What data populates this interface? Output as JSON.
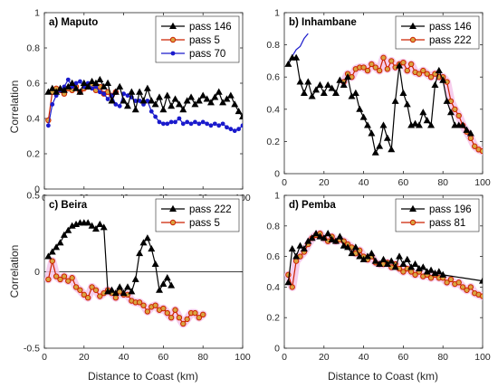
{
  "figure": {
    "xlabel": "Distance to Coast (km)",
    "ylabel": "Correlation"
  },
  "colors": {
    "black": "#000000",
    "red": "#cc2200",
    "marker_face": "#d9a441",
    "blue": "#1a1acc",
    "highlight": "#f4c6ea"
  },
  "chart_data": [
    {
      "type": "line",
      "title": "a) Maputo",
      "xlim": [
        0,
        100
      ],
      "ylim": [
        0,
        1
      ],
      "xticks": [
        0,
        20,
        40,
        60,
        80,
        100
      ],
      "yticks": [
        0,
        0.2,
        0.4,
        0.6,
        0.8,
        1
      ],
      "ytick_labels": [
        "0",
        "0.2",
        "0.4",
        "0.6",
        "0.8",
        "1"
      ],
      "legend_position": "top-right",
      "series": [
        {
          "name": "pass 146",
          "style": "black-triangle",
          "x": [
            2,
            4,
            6,
            8,
            10,
            12,
            14,
            16,
            18,
            20,
            22,
            24,
            26,
            28,
            30,
            32,
            34,
            36,
            38,
            40,
            42,
            44,
            46,
            48,
            50,
            52,
            54,
            56,
            58,
            60,
            62,
            64,
            66,
            68,
            70,
            72,
            74,
            76,
            78,
            80,
            82,
            84,
            86,
            88,
            90,
            92,
            94,
            96,
            98,
            100
          ],
          "y": [
            0.55,
            0.57,
            0.55,
            0.57,
            0.56,
            0.58,
            0.6,
            0.57,
            0.55,
            0.6,
            0.58,
            0.61,
            0.6,
            0.62,
            0.58,
            0.6,
            0.5,
            0.55,
            0.58,
            0.5,
            0.47,
            0.55,
            0.45,
            0.55,
            0.5,
            0.57,
            0.5,
            0.48,
            0.52,
            0.45,
            0.53,
            0.47,
            0.51,
            0.48,
            0.45,
            0.5,
            0.52,
            0.48,
            0.5,
            0.53,
            0.51,
            0.49,
            0.52,
            0.55,
            0.49,
            0.51,
            0.53,
            0.48,
            0.44,
            0.41
          ]
        },
        {
          "name": "pass 5",
          "style": "red-circle",
          "x": [
            2,
            4,
            6,
            8,
            10,
            12,
            14,
            16,
            18,
            20,
            22,
            24,
            26,
            28,
            30,
            32,
            34,
            36
          ],
          "y": [
            0.39,
            0.55,
            0.57,
            0.56,
            0.54,
            0.57,
            0.56,
            0.58,
            0.55,
            0.57,
            0.58,
            0.59,
            0.56,
            0.58,
            0.54,
            0.55,
            0.53,
            0.55
          ]
        },
        {
          "name": "pass 70",
          "style": "blue-dot",
          "x": [
            2,
            4,
            6,
            8,
            10,
            12,
            14,
            16,
            18,
            20,
            22,
            24,
            26,
            28,
            30,
            32,
            34,
            36,
            38,
            40,
            42,
            44,
            46,
            48,
            50,
            52,
            54,
            56,
            58,
            60,
            62,
            64,
            66,
            68,
            70,
            72,
            74,
            76,
            78,
            80,
            82,
            84,
            86,
            88,
            90,
            92,
            94,
            96,
            98,
            100
          ],
          "y": [
            0.36,
            0.48,
            0.53,
            0.56,
            0.58,
            0.62,
            0.58,
            0.6,
            0.61,
            0.58,
            0.6,
            0.57,
            0.58,
            0.55,
            0.54,
            0.51,
            0.53,
            0.48,
            0.47,
            0.54,
            0.53,
            0.52,
            0.5,
            0.5,
            0.48,
            0.5,
            0.44,
            0.41,
            0.38,
            0.37,
            0.37,
            0.38,
            0.38,
            0.4,
            0.37,
            0.38,
            0.37,
            0.38,
            0.37,
            0.38,
            0.37,
            0.36,
            0.37,
            0.36,
            0.37,
            0.35,
            0.34,
            0.33,
            0.34,
            0.36
          ]
        }
      ]
    },
    {
      "type": "line",
      "title": "b) Inhambane",
      "xlim": [
        0,
        100
      ],
      "ylim": [
        0,
        1
      ],
      "xticks": [
        0,
        20,
        40,
        60,
        80,
        100
      ],
      "yticks": [
        0,
        0.2,
        0.4,
        0.6,
        0.8,
        1
      ],
      "ytick_labels": [
        "0",
        "0.2",
        "0.4",
        "0.6",
        "0.8",
        "1"
      ],
      "legend_position": "top-right",
      "series": [
        {
          "name": "pass 146",
          "style": "black-triangle",
          "x": [
            2,
            4,
            6,
            8,
            10,
            12,
            14,
            16,
            18,
            20,
            22,
            24,
            26,
            28,
            30,
            32,
            34,
            36,
            38,
            40,
            42,
            44,
            46,
            48,
            50,
            52,
            54,
            56,
            58,
            60,
            62,
            64,
            66,
            68,
            70,
            72,
            74,
            76,
            78,
            80,
            82,
            84,
            86,
            88,
            90,
            92,
            94
          ],
          "y": [
            0.68,
            0.72,
            0.72,
            0.57,
            0.5,
            0.57,
            0.48,
            0.52,
            0.55,
            0.5,
            0.55,
            0.53,
            0.5,
            0.58,
            0.55,
            0.6,
            0.48,
            0.5,
            0.4,
            0.35,
            0.3,
            0.25,
            0.13,
            0.17,
            0.3,
            0.22,
            0.15,
            0.45,
            0.67,
            0.5,
            0.43,
            0.3,
            0.31,
            0.3,
            0.38,
            0.33,
            0.3,
            0.55,
            0.64,
            0.58,
            0.45,
            0.38,
            0.3,
            0.3,
            0.3,
            0.27,
            0.25
          ]
        },
        {
          "name": "pass 222",
          "style": "red-circle-highlight",
          "x": [
            30,
            32,
            34,
            36,
            38,
            40,
            42,
            44,
            46,
            48,
            50,
            52,
            54,
            56,
            58,
            60,
            62,
            64,
            66,
            68,
            70,
            72,
            74,
            76,
            78,
            80,
            82,
            84,
            86,
            88,
            90,
            92,
            94,
            96,
            98,
            100
          ],
          "y": [
            0.57,
            0.62,
            0.6,
            0.65,
            0.66,
            0.66,
            0.64,
            0.68,
            0.66,
            0.64,
            0.72,
            0.65,
            0.7,
            0.66,
            0.68,
            0.69,
            0.64,
            0.68,
            0.63,
            0.62,
            0.64,
            0.62,
            0.6,
            0.62,
            0.6,
            0.6,
            0.57,
            0.45,
            0.4,
            0.36,
            0.3,
            0.26,
            0.22,
            0.17,
            0.15,
            0.14
          ]
        },
        {
          "name": "",
          "style": "blue-line",
          "x": [
            2,
            4,
            6,
            8,
            10,
            12
          ],
          "y": [
            0.68,
            0.73,
            0.77,
            0.79,
            0.84,
            0.87
          ]
        }
      ]
    },
    {
      "type": "line",
      "title": "c) Beira",
      "xlim": [
        0,
        100
      ],
      "ylim": [
        -0.5,
        0.5
      ],
      "xticks": [
        0,
        20,
        40,
        60,
        80,
        100
      ],
      "yticks": [
        -0.5,
        0,
        0.5
      ],
      "ytick_labels": [
        "-0.5",
        "0",
        "0.5"
      ],
      "zero_line": true,
      "legend_position": "top-right",
      "series": [
        {
          "name": "pass 222",
          "style": "black-triangle",
          "x": [
            2,
            4,
            6,
            8,
            10,
            12,
            14,
            16,
            18,
            20,
            22,
            24,
            26,
            28,
            30,
            32,
            34,
            36,
            38,
            40,
            42,
            44,
            46,
            48,
            50,
            52,
            54,
            56,
            58,
            60,
            62,
            64
          ],
          "y": [
            0.1,
            0.13,
            0.16,
            0.19,
            0.24,
            0.27,
            0.3,
            0.31,
            0.32,
            0.32,
            0.32,
            0.3,
            0.28,
            0.31,
            0.29,
            -0.13,
            -0.12,
            -0.14,
            -0.1,
            -0.14,
            -0.1,
            -0.13,
            -0.05,
            0.12,
            0.19,
            0.22,
            0.15,
            0.05,
            -0.12,
            -0.08,
            -0.04,
            -0.09
          ]
        },
        {
          "name": "pass 5",
          "style": "red-circle-highlight",
          "x": [
            2,
            4,
            6,
            8,
            10,
            12,
            14,
            16,
            18,
            20,
            22,
            24,
            26,
            28,
            30,
            32,
            34,
            36,
            38,
            40,
            42,
            44,
            46,
            48,
            50,
            52,
            54,
            56,
            58,
            60,
            62,
            64,
            66,
            68,
            70,
            72,
            74,
            76,
            78,
            80
          ],
          "y": [
            -0.05,
            0.07,
            -0.03,
            -0.05,
            -0.03,
            -0.06,
            -0.04,
            -0.1,
            -0.12,
            -0.15,
            -0.17,
            -0.1,
            -0.12,
            -0.16,
            -0.14,
            -0.12,
            -0.14,
            -0.17,
            -0.13,
            -0.15,
            -0.15,
            -0.19,
            -0.2,
            -0.2,
            -0.22,
            -0.26,
            -0.23,
            -0.22,
            -0.25,
            -0.24,
            -0.27,
            -0.3,
            -0.25,
            -0.3,
            -0.34,
            -0.31,
            -0.27,
            -0.27,
            -0.3,
            -0.28
          ]
        }
      ]
    },
    {
      "type": "line",
      "title": "d) Pemba",
      "xlim": [
        0,
        100
      ],
      "ylim": [
        0,
        1
      ],
      "xticks": [
        0,
        20,
        40,
        60,
        80,
        100
      ],
      "yticks": [
        0,
        0.2,
        0.4,
        0.6,
        0.8,
        1
      ],
      "ytick_labels": [
        "0",
        "0.2",
        "0.4",
        "0.6",
        "0.8",
        "1"
      ],
      "legend_position": "top-right",
      "series": [
        {
          "name": "pass 196",
          "style": "black-triangle",
          "x": [
            2,
            4,
            6,
            8,
            10,
            12,
            14,
            16,
            18,
            20,
            22,
            24,
            26,
            28,
            30,
            32,
            34,
            36,
            38,
            40,
            42,
            44,
            46,
            48,
            50,
            52,
            54,
            56,
            58,
            60,
            62,
            64,
            66,
            68,
            70,
            72,
            74,
            76,
            78,
            80,
            100
          ],
          "y": [
            0.43,
            0.65,
            0.6,
            0.67,
            0.65,
            0.7,
            0.72,
            0.75,
            0.73,
            0.72,
            0.75,
            0.71,
            0.7,
            0.73,
            0.67,
            0.66,
            0.62,
            0.66,
            0.6,
            0.58,
            0.6,
            0.62,
            0.57,
            0.55,
            0.58,
            0.55,
            0.57,
            0.53,
            0.6,
            0.55,
            0.58,
            0.53,
            0.55,
            0.52,
            0.53,
            0.5,
            0.51,
            0.49,
            0.5,
            0.48,
            0.44
          ]
        },
        {
          "name": "pass 81",
          "style": "red-circle-highlight",
          "x": [
            2,
            4,
            6,
            8,
            10,
            12,
            14,
            16,
            18,
            20,
            22,
            24,
            26,
            28,
            30,
            32,
            34,
            36,
            38,
            40,
            42,
            44,
            46,
            48,
            50,
            52,
            54,
            56,
            58,
            60,
            62,
            64,
            66,
            68,
            70,
            72,
            74,
            76,
            78,
            80,
            82,
            84,
            86,
            88,
            90,
            92,
            94,
            96,
            98,
            100
          ],
          "y": [
            0.48,
            0.4,
            0.57,
            0.6,
            0.63,
            0.68,
            0.72,
            0.74,
            0.75,
            0.72,
            0.7,
            0.73,
            0.7,
            0.71,
            0.7,
            0.68,
            0.66,
            0.62,
            0.64,
            0.6,
            0.58,
            0.6,
            0.56,
            0.55,
            0.55,
            0.56,
            0.53,
            0.55,
            0.52,
            0.5,
            0.52,
            0.5,
            0.48,
            0.5,
            0.47,
            0.48,
            0.46,
            0.48,
            0.46,
            0.46,
            0.43,
            0.45,
            0.42,
            0.43,
            0.4,
            0.38,
            0.4,
            0.36,
            0.35,
            0.34
          ]
        }
      ]
    }
  ]
}
